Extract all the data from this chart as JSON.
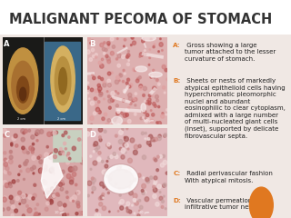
{
  "title": "MALIGNANT PECOMA OF STOMACH",
  "title_fontsize": 10.5,
  "title_fontweight": "bold",
  "title_color": "#333333",
  "bg_color": "#f0e8e4",
  "text_bg_color": "#f0e8e4",
  "panel_bg_color": "#ffffff",
  "text_color": "#222222",
  "orange_color": "#e07820",
  "label_color": "#ffffff",
  "label_fontsize": 6,
  "desc_fontsize": 5.0,
  "letter_fontsize": 5.2,
  "desc_A_letter": "A:",
  "desc_A_text": " Gross showing a large\ntumor attached to the lesser\ncurvature of stomach.",
  "desc_B_letter": "B:",
  "desc_B_text": " Sheets or nests of markedly\natypical epithelioid cells having\nhyperchromatic pleomorphic\nnuclei and abundant\neosinophilic to clear cytoplasm,\nadmixed with a large number\nof multi-nucleated giant cells\n(inset), supported by delicate\nfibrovascular septa.",
  "desc_C_letter": "C:",
  "desc_C_text": " Radial perivascular fashion\nWith atypical mitosis.",
  "desc_D_letter": "D:",
  "desc_D_text": " Vascular permeation of the\ninfiltrative tumor nests",
  "orange_circle_color": "#e07820",
  "panel_A_facecolor": "#b09060",
  "panel_B_facecolor": "#e8c8c8",
  "panel_C_facecolor": "#e0b8b8",
  "panel_D_facecolor": "#e8c0c8"
}
